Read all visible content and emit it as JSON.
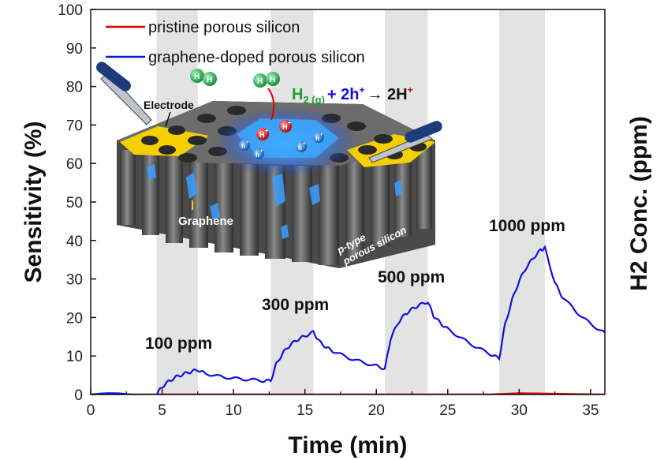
{
  "chart_data": {
    "type": "line",
    "xlabel": "Time (min)",
    "ylabel": "Sensitivity (%)",
    "ylabel_right": "H2 Conc. (ppm)",
    "xlim": [
      0,
      36
    ],
    "ylim": [
      0,
      100
    ],
    "x_ticks": [
      0,
      5,
      10,
      15,
      20,
      25,
      30,
      35
    ],
    "y_ticks": [
      0,
      10,
      20,
      30,
      40,
      50,
      60,
      70,
      80,
      90,
      100
    ],
    "legend_position": "top-left",
    "exposure_windows": [
      [
        4.6,
        7.5
      ],
      [
        12.6,
        15.6
      ],
      [
        20.6,
        23.6
      ],
      [
        28.6,
        31.8
      ]
    ],
    "series": [
      {
        "name": "pristine porous silicon",
        "color": "#dd0000",
        "x": [
          0,
          5,
          10,
          15,
          20,
          25,
          28,
          30,
          32,
          36
        ],
        "y": [
          0,
          0,
          0,
          0,
          0,
          0,
          0,
          0.3,
          0.2,
          0
        ]
      },
      {
        "name": "graphene-doped porous silicon",
        "color": "#1010e0",
        "x": [
          0,
          4.6,
          5.0,
          5.5,
          6.0,
          6.5,
          7.0,
          7.5,
          8.0,
          9.0,
          10.0,
          11.0,
          12.0,
          12.6,
          13.0,
          13.5,
          14.0,
          14.5,
          15.0,
          15.6,
          16.0,
          16.5,
          17.0,
          18.0,
          19.0,
          20.0,
          20.6,
          21.0,
          21.5,
          22.0,
          22.5,
          23.0,
          23.6,
          24.0,
          24.5,
          25.0,
          26.0,
          27.0,
          28.0,
          28.6,
          29.0,
          29.5,
          30.0,
          30.5,
          31.0,
          31.5,
          31.8,
          32.5,
          33.0,
          34.0,
          35.0,
          36.0
        ],
        "y": [
          0,
          0,
          2.0,
          3.5,
          4.6,
          5.3,
          5.9,
          6.4,
          5.5,
          4.7,
          4.2,
          3.9,
          3.6,
          3.5,
          8.0,
          11.0,
          13.0,
          14.3,
          15.2,
          16.2,
          13.8,
          12.2,
          11.2,
          9.6,
          8.4,
          7.4,
          6.7,
          14.5,
          18.5,
          20.8,
          22.2,
          23.2,
          24.1,
          20.5,
          18.5,
          17.0,
          14.5,
          12.3,
          10.5,
          9.3,
          18.0,
          24.5,
          29.5,
          33.0,
          35.5,
          37.5,
          38.0,
          29.0,
          25.5,
          21.5,
          18.3,
          16.0
        ]
      }
    ],
    "annotations": [
      "100 ppm",
      "300 ppm",
      "500 ppm",
      "1000 ppm"
    ],
    "inset": {
      "equation": {
        "h2": "H",
        "h2_sub": "2 (g)",
        "plus1": "+ 2h",
        "plus1_sup": "+",
        "arrow": "→ 2H",
        "arrow_sup": "+"
      },
      "labels": {
        "electrode": "Electrode",
        "graphene": "Graphene",
        "ptype_line1": "p-type",
        "ptype_line2": "porous silicon"
      },
      "molecule_letter": "H",
      "ion": "H",
      "hole": "h",
      "charge": "+"
    }
  }
}
